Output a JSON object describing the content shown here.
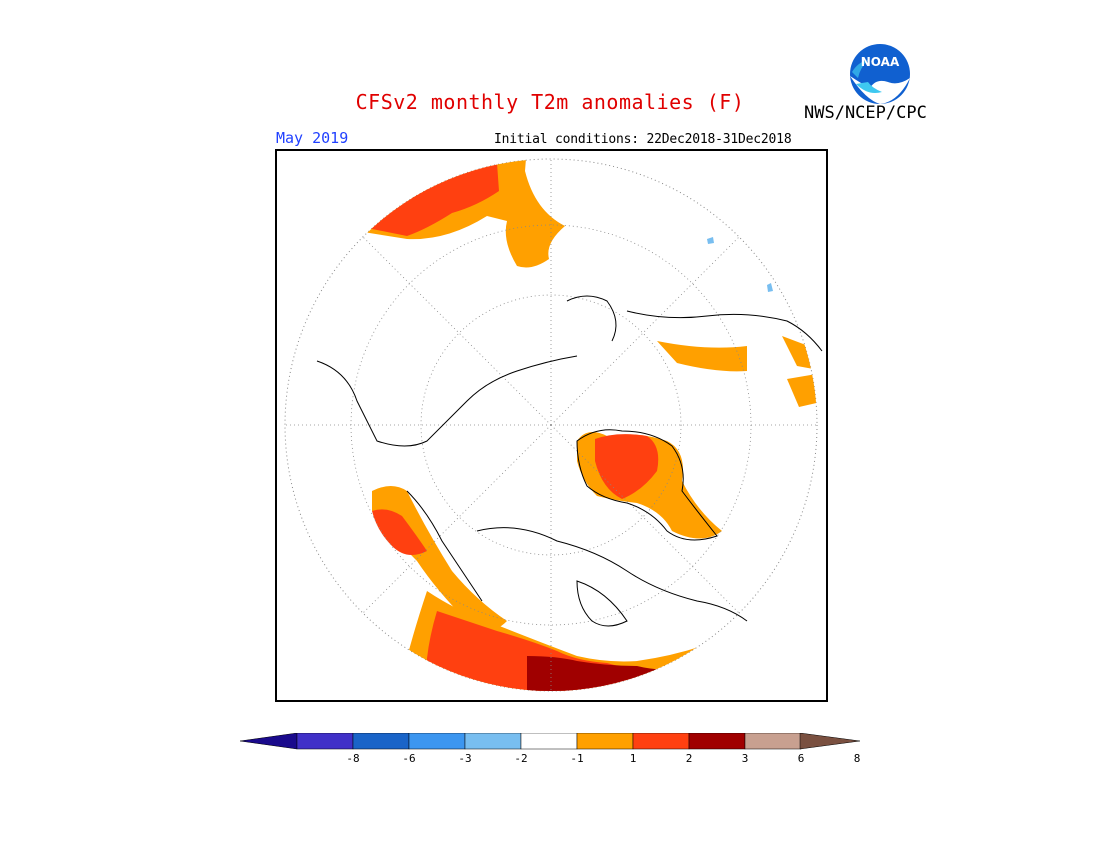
{
  "header": {
    "title": "CFSv2 monthly T2m anomalies (F)",
    "organization": "NWS/NCEP/CPC",
    "logo_text": "NOAA",
    "month": "May 2019",
    "initial_conditions": "Initial conditions: 22Dec2018-31Dec2018"
  },
  "legend": {
    "colors": [
      "#1a0a8c",
      "#4030c8",
      "#1a64c8",
      "#3c96f0",
      "#78bef0",
      "#ffffff",
      "#ffa000",
      "#ff4010",
      "#a00000",
      "#c8a090",
      "#7a5040"
    ],
    "tick_labels": [
      "-8",
      "-6",
      "-3",
      "-2",
      "-1",
      "1",
      "2",
      "3",
      "6",
      "8"
    ]
  },
  "map": {
    "projection": "north-polar-stereographic",
    "palette": {
      "light": "#ffa000",
      "mid": "#ff4010",
      "dark": "#a00000",
      "cold": "#78bef0",
      "coast": "#000000",
      "grid": "#888888"
    }
  }
}
